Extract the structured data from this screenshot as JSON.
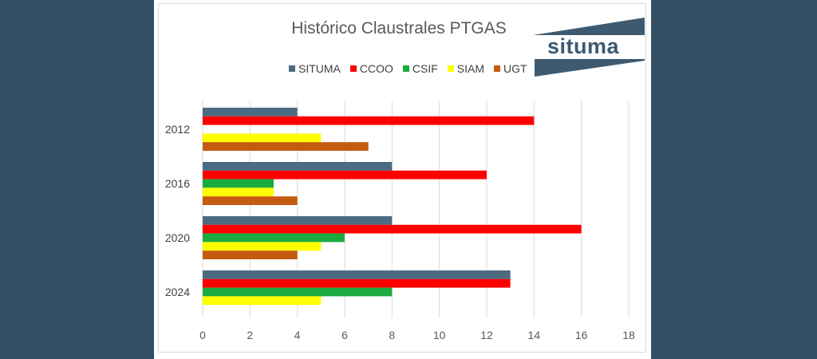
{
  "chart_data": {
    "type": "bar",
    "orientation": "horizontal",
    "title": "Histórico Claustrales PTGAS",
    "categories": [
      "2012",
      "2016",
      "2020",
      "2024"
    ],
    "series": [
      {
        "name": "SITUMA",
        "color": "#4a6b82",
        "values": [
          4,
          8,
          8,
          13
        ]
      },
      {
        "name": "CCOO",
        "color": "#ff0000",
        "values": [
          14,
          12,
          16,
          13
        ]
      },
      {
        "name": "CSIF",
        "color": "#1aab40",
        "values": [
          0,
          3,
          6,
          8
        ]
      },
      {
        "name": "SIAM",
        "color": "#ffff00",
        "values": [
          5,
          3,
          5,
          5
        ]
      },
      {
        "name": "UGT",
        "color": "#c55a11",
        "values": [
          7,
          4,
          4,
          0
        ]
      }
    ],
    "xlim": [
      0,
      18
    ],
    "xticks": [
      "0",
      "2",
      "4",
      "6",
      "8",
      "10",
      "12",
      "14",
      "16",
      "18"
    ],
    "grid": true,
    "legend_position": "top"
  },
  "logo": {
    "text": "situma",
    "color": "#3d5a70"
  }
}
